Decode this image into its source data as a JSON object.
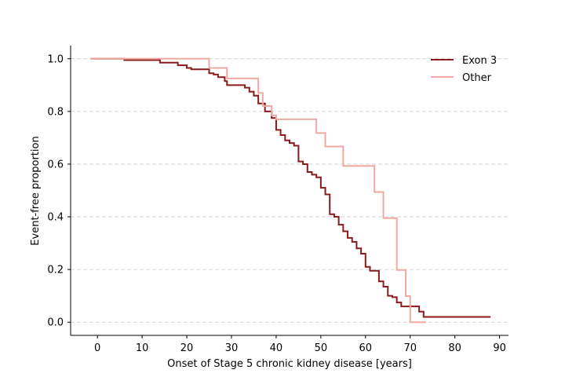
{
  "chart_data": {
    "type": "line",
    "step": true,
    "xlabel": "Onset of Stage 5 chronic kidney disease [years]",
    "ylabel": "Event-free proportion",
    "xlim": [
      -6,
      92
    ],
    "ylim": [
      -0.05,
      1.05
    ],
    "xticks": [
      0,
      10,
      20,
      30,
      40,
      50,
      60,
      70,
      80,
      90
    ],
    "yticks": [
      0.0,
      0.2,
      0.4,
      0.6,
      0.8,
      1.0
    ],
    "grid": "horizontal-dashed",
    "legend_position": "top-right",
    "series": [
      {
        "name": "Exon 3",
        "color": "#8b1a1a",
        "x": [
          -1.5,
          6,
          14,
          18,
          20,
          21,
          25,
          26,
          27,
          28.5,
          29,
          33,
          34,
          35,
          36,
          37.5,
          39,
          40,
          41,
          42,
          43,
          44,
          45,
          46,
          47,
          48,
          49,
          50,
          51,
          52,
          53,
          54,
          55,
          56,
          57,
          58,
          59,
          60,
          61,
          62.5,
          63,
          64,
          65,
          66,
          67,
          68,
          69,
          70,
          71,
          72,
          73,
          88
        ],
        "y": [
          1.0,
          0.995,
          0.985,
          0.975,
          0.965,
          0.96,
          0.945,
          0.94,
          0.93,
          0.915,
          0.9,
          0.89,
          0.875,
          0.86,
          0.83,
          0.8,
          0.775,
          0.73,
          0.71,
          0.69,
          0.68,
          0.67,
          0.61,
          0.6,
          0.57,
          0.56,
          0.55,
          0.51,
          0.485,
          0.41,
          0.4,
          0.37,
          0.345,
          0.32,
          0.305,
          0.28,
          0.26,
          0.21,
          0.195,
          0.195,
          0.155,
          0.135,
          0.1,
          0.095,
          0.075,
          0.06,
          0.06,
          0.06,
          0.06,
          0.04,
          0.02,
          0.02
        ]
      },
      {
        "name": "Other",
        "color": "#f0a9a2",
        "x": [
          -1.5,
          18,
          25,
          29,
          36,
          37,
          39,
          40,
          49,
          51,
          55,
          59,
          62,
          64,
          67,
          69,
          70,
          73.5
        ],
        "y": [
          1.0,
          1.0,
          0.965,
          0.925,
          0.87,
          0.82,
          0.785,
          0.77,
          0.718,
          0.667,
          0.593,
          0.593,
          0.494,
          0.395,
          0.198,
          0.099,
          0.0,
          0.0
        ]
      }
    ]
  }
}
